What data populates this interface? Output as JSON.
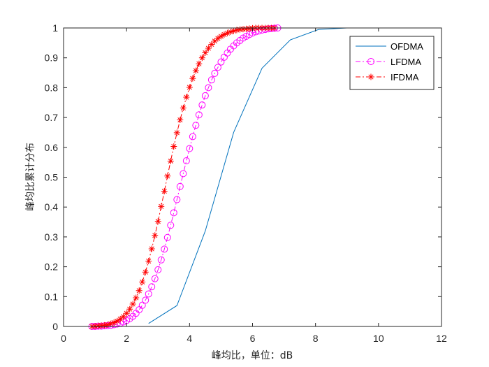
{
  "chart_data": {
    "type": "line",
    "title": "",
    "xlabel": "峰均比，单位：dB",
    "ylabel": "峰均比累计分布",
    "xlim": [
      0,
      12
    ],
    "ylim": [
      0,
      1
    ],
    "xticks": [
      0,
      2,
      4,
      6,
      8,
      10,
      12
    ],
    "yticks": [
      0,
      0.1,
      0.2,
      0.3,
      0.4,
      0.5,
      0.6,
      0.7,
      0.8,
      0.9,
      1
    ],
    "grid": false,
    "legend_position": "top-right",
    "series": [
      {
        "name": "OFDMA",
        "color": "#0072bd",
        "line_style": "solid",
        "marker": "none",
        "x": [
          2.7,
          3.6,
          4.5,
          5.4,
          6.3,
          7.2,
          8.1,
          9.0,
          9.9,
          10.8
        ],
        "y": [
          0.01,
          0.07,
          0.32,
          0.65,
          0.865,
          0.96,
          0.995,
          1.0,
          1.0,
          1.0
        ]
      },
      {
        "name": "LFDMA",
        "color": "#ff00ff",
        "line_style": "dashdot",
        "marker": "circle",
        "x": [
          0.9,
          1.0,
          1.1,
          1.2,
          1.3,
          1.4,
          1.5,
          1.6,
          1.7,
          1.8,
          1.9,
          2.0,
          2.1,
          2.2,
          2.3,
          2.4,
          2.5,
          2.6,
          2.7,
          2.8,
          2.9,
          3.0,
          3.1,
          3.2,
          3.3,
          3.4,
          3.5,
          3.6,
          3.7,
          3.8,
          3.9,
          4.0,
          4.1,
          4.2,
          4.3,
          4.4,
          4.5,
          4.6,
          4.7,
          4.8,
          4.9,
          5.0,
          5.1,
          5.2,
          5.3,
          5.4,
          5.5,
          5.6,
          5.7,
          5.8,
          5.9,
          6.0,
          6.1,
          6.2,
          6.3,
          6.4,
          6.5,
          6.6,
          6.7,
          6.8
        ],
        "y": [
          0.0,
          0.0,
          0.001,
          0.001,
          0.002,
          0.003,
          0.004,
          0.006,
          0.008,
          0.011,
          0.015,
          0.02,
          0.026,
          0.034,
          0.044,
          0.056,
          0.071,
          0.088,
          0.109,
          0.133,
          0.16,
          0.19,
          0.223,
          0.259,
          0.298,
          0.339,
          0.381,
          0.425,
          0.469,
          0.512,
          0.555,
          0.596,
          0.636,
          0.674,
          0.709,
          0.742,
          0.773,
          0.8,
          0.826,
          0.848,
          0.868,
          0.886,
          0.902,
          0.916,
          0.929,
          0.94,
          0.95,
          0.958,
          0.966,
          0.972,
          0.978,
          0.983,
          0.987,
          0.99,
          0.993,
          0.995,
          0.997,
          0.998,
          0.999,
          1.0
        ]
      },
      {
        "name": "IFDMA",
        "color": "#ff0000",
        "line_style": "dashdot",
        "marker": "asterisk",
        "x": [
          0.9,
          1.0,
          1.1,
          1.2,
          1.3,
          1.4,
          1.5,
          1.6,
          1.7,
          1.8,
          1.9,
          2.0,
          2.1,
          2.2,
          2.3,
          2.4,
          2.5,
          2.6,
          2.7,
          2.8,
          2.9,
          3.0,
          3.1,
          3.2,
          3.3,
          3.4,
          3.5,
          3.6,
          3.7,
          3.8,
          3.9,
          4.0,
          4.1,
          4.2,
          4.3,
          4.4,
          4.5,
          4.6,
          4.7,
          4.8,
          4.9,
          5.0,
          5.1,
          5.2,
          5.3,
          5.4,
          5.5,
          5.6,
          5.7,
          5.8,
          5.9,
          6.0,
          6.1,
          6.2,
          6.3,
          6.4,
          6.5,
          6.6,
          6.7
        ],
        "y": [
          0.0,
          0.001,
          0.002,
          0.003,
          0.004,
          0.006,
          0.009,
          0.013,
          0.018,
          0.025,
          0.033,
          0.044,
          0.058,
          0.075,
          0.096,
          0.12,
          0.149,
          0.182,
          0.219,
          0.26,
          0.305,
          0.352,
          0.402,
          0.453,
          0.504,
          0.554,
          0.603,
          0.649,
          0.692,
          0.732,
          0.768,
          0.801,
          0.831,
          0.857,
          0.88,
          0.9,
          0.917,
          0.932,
          0.945,
          0.956,
          0.965,
          0.972,
          0.978,
          0.983,
          0.987,
          0.99,
          0.993,
          0.995,
          0.996,
          0.997,
          0.998,
          0.999,
          1.0,
          1.0,
          1.0,
          1.0,
          1.0,
          1.0,
          1.0
        ]
      }
    ]
  }
}
